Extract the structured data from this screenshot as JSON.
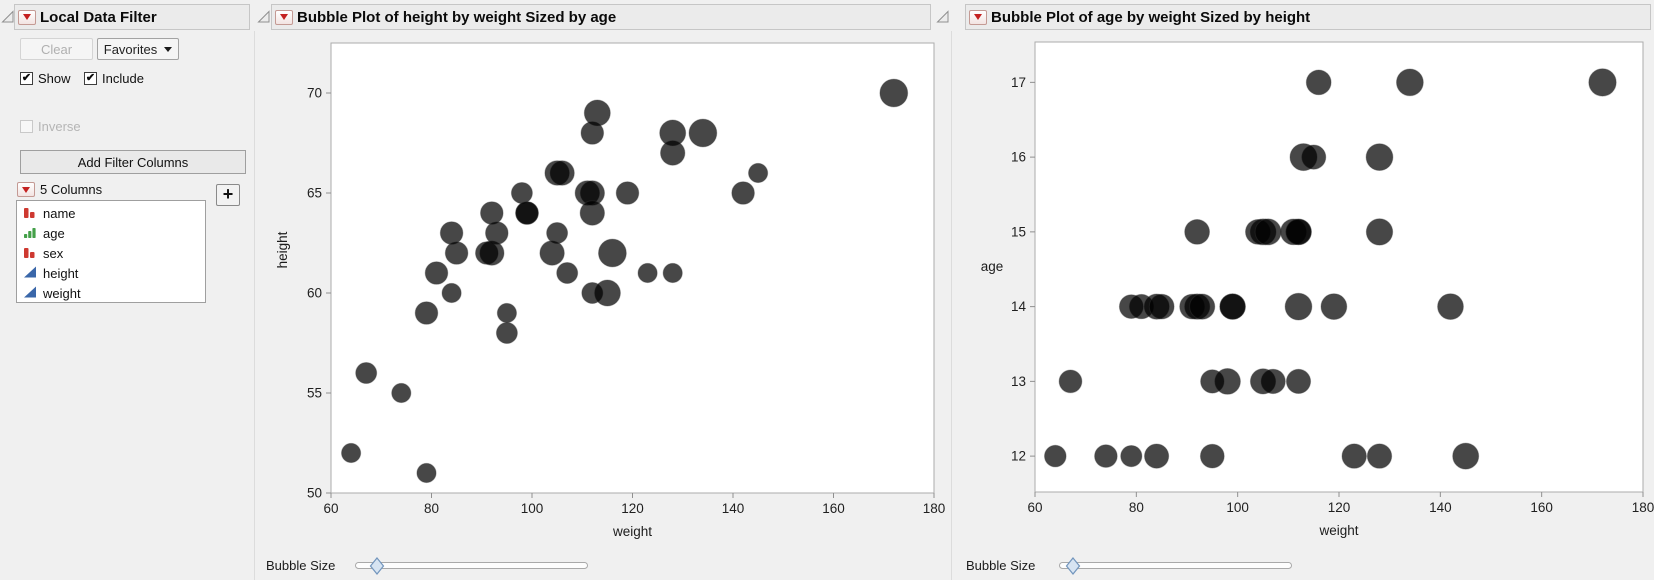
{
  "filter": {
    "title": "Local Data Filter",
    "clear_label": "Clear",
    "favorites_label": "Favorites",
    "show_label": "Show",
    "include_label": "Include",
    "inverse_label": "Inverse",
    "add_filter_columns_label": "Add Filter Columns",
    "columns_count_label": "5 Columns",
    "plus_label": "+",
    "columns": [
      {
        "label": "name",
        "icon": "nominal-red-bars-icon"
      },
      {
        "label": "age",
        "icon": "ordinal-green-bars-icon"
      },
      {
        "label": "sex",
        "icon": "nominal-red-bars-icon"
      },
      {
        "label": "height",
        "icon": "continuous-blue-triangle-icon"
      },
      {
        "label": "weight",
        "icon": "continuous-blue-triangle-icon"
      }
    ]
  },
  "plot_panels": [
    {
      "title": "Bubble Plot of height by weight Sized by age",
      "bubble_size_label": "Bubble Size"
    },
    {
      "title": "Bubble Plot of age by weight Sized by height",
      "bubble_size_label": "Bubble Size"
    }
  ],
  "colors": {
    "accent_red": "#c42121",
    "bubble_fill": "#000000",
    "bubble_opacity": 0.72,
    "nominal_icon_red": "#ce3930",
    "ordinal_icon_green": "#44a049",
    "continuous_icon_blue": "#3a67a9",
    "titlebar_bg": "#ebebeb",
    "page_bg": "#f0f0f0",
    "frame_border": "#ababab"
  },
  "chart_data": [
    {
      "type": "bubble",
      "title": "Bubble Plot of height by weight Sized by age",
      "xlabel": "weight",
      "ylabel": "height",
      "size_by": "age",
      "xlim": [
        60,
        180
      ],
      "ylim": [
        50,
        72.5
      ],
      "xticks": [
        60,
        80,
        100,
        120,
        140,
        160,
        180
      ],
      "yticks": [
        50,
        55,
        60,
        65,
        70
      ],
      "grid": false,
      "legend": "none",
      "points_fields": [
        "weight",
        "height",
        "age"
      ],
      "points": [
        [
          64,
          52,
          12
        ],
        [
          74,
          55,
          12
        ],
        [
          79,
          51,
          12
        ],
        [
          84,
          60,
          12
        ],
        [
          95,
          59,
          12
        ],
        [
          123,
          61,
          12
        ],
        [
          128,
          61,
          12
        ],
        [
          145,
          66,
          12
        ],
        [
          67,
          56,
          13
        ],
        [
          95,
          58,
          13
        ],
        [
          98,
          65,
          13
        ],
        [
          105,
          63,
          13
        ],
        [
          107,
          61,
          13
        ],
        [
          112,
          60,
          13
        ],
        [
          79,
          59,
          14
        ],
        [
          81,
          61,
          14
        ],
        [
          84,
          63,
          14
        ],
        [
          85,
          62,
          14
        ],
        [
          91,
          62,
          14
        ],
        [
          92,
          64,
          14
        ],
        [
          93,
          63,
          14
        ],
        [
          99,
          64,
          14
        ],
        [
          99,
          64,
          14
        ],
        [
          112,
          68,
          14
        ],
        [
          119,
          65,
          14
        ],
        [
          142,
          65,
          14
        ],
        [
          92,
          62,
          15
        ],
        [
          104,
          62,
          15
        ],
        [
          105,
          66,
          15
        ],
        [
          106,
          66,
          15
        ],
        [
          111,
          65,
          15
        ],
        [
          112,
          65,
          15
        ],
        [
          112,
          64,
          15
        ],
        [
          128,
          67,
          15
        ],
        [
          113,
          69,
          16
        ],
        [
          115,
          60,
          16
        ],
        [
          128,
          68,
          16
        ],
        [
          116,
          62,
          17
        ],
        [
          134,
          68,
          17
        ],
        [
          172,
          70,
          17
        ]
      ],
      "size_domain": [
        12,
        17
      ]
    },
    {
      "type": "bubble",
      "title": "Bubble Plot of age by weight Sized by height",
      "xlabel": "weight",
      "ylabel": "age",
      "size_by": "height",
      "xlim": [
        60,
        180
      ],
      "ylim": [
        11.52,
        17.54
      ],
      "xticks": [
        60,
        80,
        100,
        120,
        140,
        160,
        180
      ],
      "yticks": [
        12,
        13,
        14,
        15,
        16,
        17
      ],
      "grid": false,
      "legend": "none",
      "points_fields": [
        "weight",
        "age",
        "height"
      ],
      "points": [
        [
          64,
          12,
          52
        ],
        [
          74,
          12,
          55
        ],
        [
          79,
          12,
          51
        ],
        [
          84,
          12,
          60
        ],
        [
          95,
          12,
          59
        ],
        [
          123,
          12,
          61
        ],
        [
          128,
          12,
          61
        ],
        [
          145,
          12,
          66
        ],
        [
          67,
          13,
          56
        ],
        [
          95,
          13,
          58
        ],
        [
          98,
          13,
          65
        ],
        [
          105,
          13,
          63
        ],
        [
          107,
          13,
          61
        ],
        [
          112,
          13,
          60
        ],
        [
          79,
          14,
          59
        ],
        [
          81,
          14,
          61
        ],
        [
          84,
          14,
          63
        ],
        [
          85,
          14,
          62
        ],
        [
          91,
          14,
          62
        ],
        [
          92,
          14,
          64
        ],
        [
          93,
          14,
          63
        ],
        [
          99,
          14,
          64
        ],
        [
          99,
          14,
          64
        ],
        [
          112,
          14,
          68
        ],
        [
          119,
          14,
          65
        ],
        [
          142,
          14,
          65
        ],
        [
          92,
          15,
          62
        ],
        [
          104,
          15,
          62
        ],
        [
          105,
          15,
          66
        ],
        [
          106,
          15,
          66
        ],
        [
          111,
          15,
          65
        ],
        [
          112,
          15,
          65
        ],
        [
          112,
          15,
          64
        ],
        [
          128,
          15,
          67
        ],
        [
          113,
          16,
          69
        ],
        [
          115,
          16,
          60
        ],
        [
          128,
          16,
          68
        ],
        [
          116,
          17,
          62
        ],
        [
          134,
          17,
          68
        ],
        [
          172,
          17,
          70
        ]
      ],
      "size_domain": [
        51,
        70
      ]
    }
  ]
}
